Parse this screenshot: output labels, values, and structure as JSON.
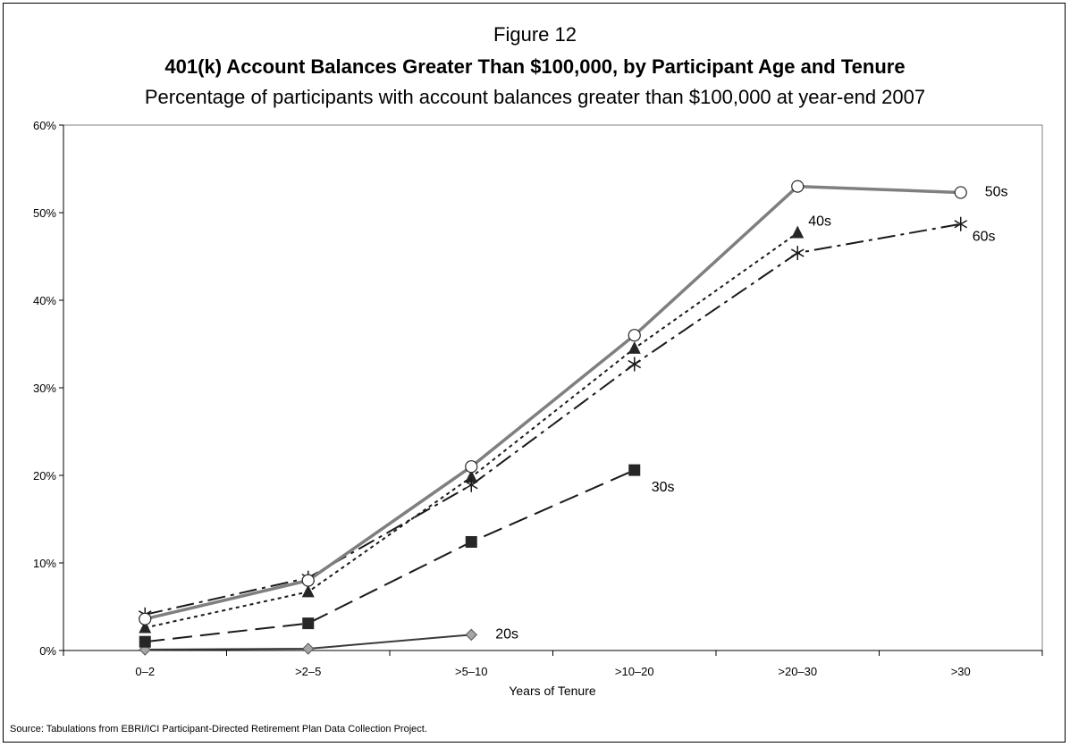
{
  "header": {
    "figure_label": "Figure 12",
    "title": "401(k) Account Balances Greater Than $100,000, by Participant Age and Tenure",
    "subtitle": "Percentage of participants with account balances greater than $100,000 at year-end 2007"
  },
  "source": "Source: Tabulations from EBRI/ICI Participant-Directed Retirement Plan Data Collection Project.",
  "chart_data": {
    "type": "line",
    "title": "401(k) Account Balances Greater Than $100,000, by Participant Age and Tenure",
    "subtitle": "Percentage of participants with account balances greater than $100,000 at year-end 2007",
    "xlabel": "Years of Tenure",
    "ylabel": "",
    "categories": [
      "0–2",
      ">2–5",
      ">5–10",
      ">10–20",
      ">20–30",
      ">30"
    ],
    "ylim": [
      0,
      60
    ],
    "yticks": [
      "0%",
      "10%",
      "20%",
      "30%",
      "40%",
      "50%",
      "60%"
    ],
    "grid": false,
    "legend": "direct labels at line ends",
    "series": [
      {
        "name": "20s",
        "values": [
          0.1,
          0.2,
          1.8,
          null,
          null,
          null
        ],
        "color": "#3a3a3a",
        "marker": "diamond",
        "dash": "solid"
      },
      {
        "name": "30s",
        "values": [
          1.0,
          3.1,
          12.4,
          20.6,
          null,
          null
        ],
        "color": "#1a1a1a",
        "marker": "square",
        "dash": "long-dash"
      },
      {
        "name": "40s",
        "values": [
          2.6,
          6.7,
          19.8,
          34.5,
          47.7,
          null
        ],
        "color": "#1a1a1a",
        "marker": "triangle",
        "dash": "dotted"
      },
      {
        "name": "50s",
        "values": [
          3.6,
          8.0,
          21.0,
          36.0,
          53.0,
          52.3
        ],
        "color": "#7f7f7f",
        "marker": "circle",
        "dash": "solid-thick"
      },
      {
        "name": "60s",
        "values": [
          4.1,
          8.3,
          18.9,
          32.7,
          45.4,
          48.7
        ],
        "color": "#1a1a1a",
        "marker": "asterisk",
        "dash": "dash-dot"
      }
    ]
  }
}
